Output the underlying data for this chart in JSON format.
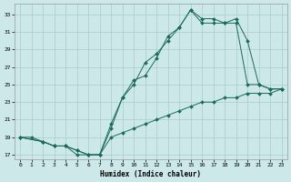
{
  "xlabel": "Humidex (Indice chaleur)",
  "bg_color": "#cce8e8",
  "grid_color": "#aacccc",
  "line_color": "#1a6b5a",
  "xlim": [
    -0.5,
    23.5
  ],
  "ylim": [
    16.5,
    34.2
  ],
  "xticks": [
    0,
    1,
    2,
    3,
    4,
    5,
    6,
    7,
    8,
    9,
    10,
    11,
    12,
    13,
    14,
    15,
    16,
    17,
    18,
    19,
    20,
    21,
    22,
    23
  ],
  "yticks": [
    17,
    19,
    21,
    23,
    25,
    27,
    29,
    31,
    33
  ],
  "curve1_x": [
    0,
    1,
    2,
    3,
    4,
    5,
    6,
    7,
    8,
    9,
    10,
    11,
    12,
    13,
    14,
    15,
    16,
    17,
    18,
    19,
    20,
    21,
    22,
    23
  ],
  "curve1_y": [
    19,
    19,
    18.5,
    18,
    18,
    17,
    17,
    17,
    20,
    23.5,
    25.5,
    26,
    28,
    30.5,
    31.5,
    33.5,
    32,
    32,
    32,
    32,
    25,
    25,
    24.5,
    24.5
  ],
  "curve2_x": [
    0,
    2,
    3,
    4,
    5,
    6,
    7,
    8,
    9,
    10,
    11,
    12,
    13,
    14,
    15,
    16,
    17,
    18,
    19,
    20,
    21,
    22,
    23
  ],
  "curve2_y": [
    19,
    18.5,
    18,
    18,
    17.5,
    17,
    17,
    20.5,
    23.5,
    25,
    27.5,
    28.5,
    30,
    31.5,
    33.5,
    32.5,
    32.5,
    32,
    32.5,
    30,
    25,
    24.5,
    24.5
  ],
  "curve3_x": [
    0,
    2,
    3,
    4,
    5,
    6,
    7,
    8,
    9,
    10,
    11,
    12,
    13,
    14,
    15,
    16,
    17,
    18,
    19,
    20,
    21,
    22,
    23
  ],
  "curve3_y": [
    19,
    18.5,
    18,
    18,
    17.5,
    17,
    17,
    19,
    19.5,
    20,
    20.5,
    21,
    21.5,
    22,
    22.5,
    23,
    23,
    23.5,
    23.5,
    24,
    24,
    24,
    24.5
  ]
}
